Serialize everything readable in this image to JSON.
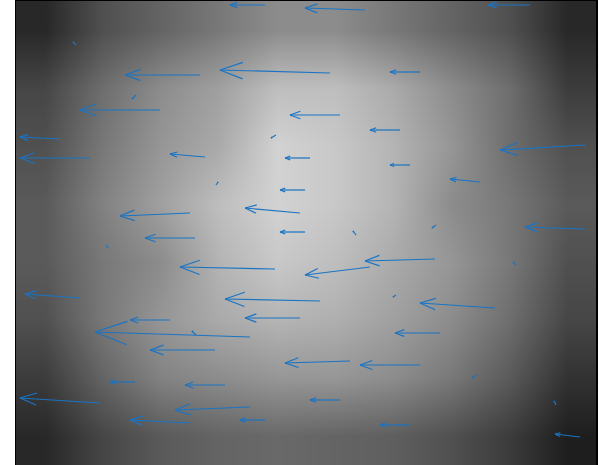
{
  "chart_data": {
    "type": "quiver",
    "xlim": [
      0,
      581
    ],
    "ylim": [
      0,
      465
    ],
    "tick_labels": false,
    "grid": false,
    "color": "#1a74c4",
    "background": {
      "x": [
        29,
        87,
        145,
        203,
        261,
        319,
        377,
        435,
        493,
        551
      ],
      "y": [
        29,
        87,
        145,
        203,
        261,
        319,
        377,
        435
      ],
      "z": [
        [
          40,
          70,
          90,
          100,
          105,
          100,
          95,
          80,
          60,
          30
        ],
        [
          60,
          100,
          130,
          140,
          150,
          150,
          140,
          120,
          90,
          50
        ],
        [
          80,
          120,
          150,
          170,
          180,
          175,
          160,
          140,
          110,
          70
        ],
        [
          90,
          120,
          140,
          180,
          200,
          190,
          170,
          150,
          120,
          80
        ],
        [
          90,
          130,
          160,
          190,
          210,
          200,
          180,
          140,
          120,
          90
        ],
        [
          80,
          120,
          150,
          170,
          210,
          200,
          180,
          150,
          110,
          80
        ],
        [
          70,
          110,
          140,
          160,
          190,
          190,
          170,
          140,
          110,
          60
        ],
        [
          40,
          80,
          100,
          120,
          140,
          140,
          120,
          100,
          80,
          40
        ]
      ],
      "zlim": [
        0,
        255
      ]
    },
    "x": [
      249,
      349,
      514,
      184,
      314,
      404,
      144,
      44,
      324,
      384,
      569,
      74,
      189,
      294,
      394,
      464,
      289,
      174,
      284,
      179,
      289,
      569,
      259,
      354,
      419,
      64,
      304,
      479,
      154,
      284,
      234,
      424,
      199,
      334,
      404,
      119,
      209,
      84,
      234,
      324,
      394,
      564,
      174,
      249,
      60,
      120,
      200,
      260,
      340,
      420,
      500,
      90,
      180,
      380,
      460,
      540
    ],
    "y": [
      460,
      455,
      460,
      390,
      392,
      393,
      355,
      326,
      350,
      335,
      320,
      307,
      308,
      307,
      300,
      283,
      275,
      252,
      252,
      227,
      233,
      236,
      196,
      198,
      206,
      167,
      164,
      157,
      145,
      147,
      128,
      132,
      115,
      104,
      100,
      83,
      80,
      62,
      58,
      65,
      40,
      28,
      42,
      45,
      420,
      370,
      280,
      330,
      230,
      240,
      200,
      220,
      130,
      170,
      90,
      60
    ],
    "u": [
      -35,
      -60,
      -42,
      -75,
      -110,
      -30,
      -80,
      -40,
      -50,
      -30,
      -85,
      -70,
      -35,
      -25,
      -20,
      -30,
      -25,
      -70,
      -55,
      -50,
      -25,
      -60,
      -95,
      -65,
      -70,
      -55,
      -95,
      -75,
      -40,
      -55,
      -155,
      -45,
      -65,
      -65,
      -60,
      -25,
      -40,
      -80,
      -75,
      -30,
      -30,
      -25,
      -60,
      -25,
      -3,
      -4,
      2,
      -5,
      -3,
      -4,
      -3,
      2,
      -4,
      -3,
      -4,
      -2
    ],
    "v": [
      0,
      2,
      0,
      0,
      3,
      0,
      0,
      2,
      0,
      0,
      -5,
      0,
      3,
      0,
      0,
      3,
      0,
      -3,
      5,
      0,
      0,
      2,
      2,
      -8,
      -2,
      4,
      2,
      5,
      0,
      0,
      5,
      0,
      0,
      -2,
      0,
      0,
      0,
      5,
      -3,
      0,
      0,
      3,
      3,
      0,
      3,
      -4,
      3,
      -3,
      4,
      -3,
      3,
      -3,
      4,
      -2,
      -3,
      4
    ]
  }
}
